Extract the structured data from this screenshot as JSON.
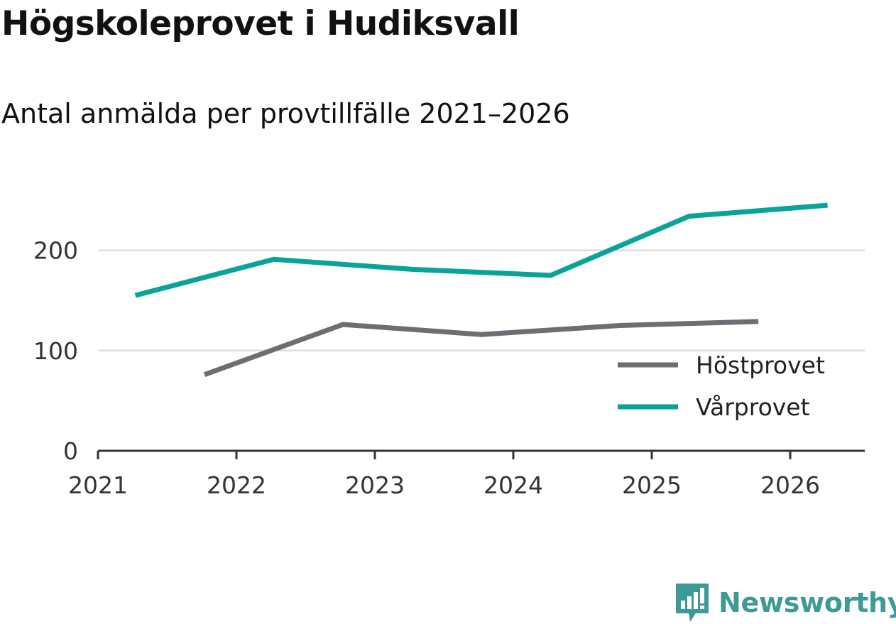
{
  "chart_data": {
    "type": "line",
    "title": "Högskoleprovet i Hudiksvall",
    "subtitle": "Antal anmälda per provtillfälle 2021–2026",
    "xlabel": "",
    "ylabel": "",
    "x_ticks": [
      "2021",
      "2022",
      "2023",
      "2024",
      "2025",
      "2026"
    ],
    "y_ticks": [
      "0",
      "100",
      "200"
    ],
    "xlim": [
      2021,
      2026.55
    ],
    "ylim": [
      0,
      270
    ],
    "gridlines": [
      100,
      200
    ],
    "legend_position": "bottom-right",
    "series": [
      {
        "name": "Höstprovet",
        "color": "#6d6d73",
        "x": [
          2021.77,
          2022.77,
          2023.77,
          2024.77,
          2025.77
        ],
        "y": [
          76,
          126,
          116,
          125,
          129
        ]
      },
      {
        "name": "Vårprovet",
        "color": "#09a39a",
        "x": [
          2021.27,
          2022.27,
          2023.27,
          2024.27,
          2025.27,
          2026.27
        ],
        "y": [
          155,
          191,
          181,
          175,
          234,
          245
        ]
      }
    ]
  },
  "brand": {
    "name": "Newsworthy",
    "icon": "newsworthy-logo-icon",
    "color": "#3e9a95"
  }
}
